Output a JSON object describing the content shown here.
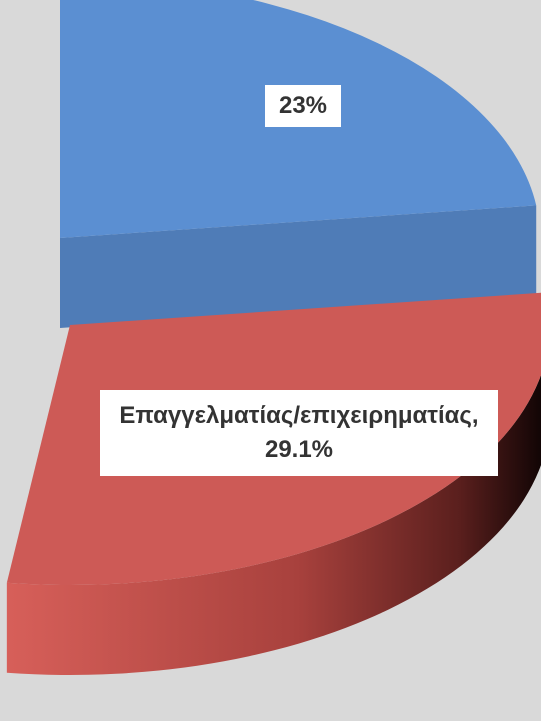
{
  "chart_data": {
    "type": "pie",
    "values": [
      23,
      29.1
    ],
    "value_labels": [
      "23%",
      "Επαγγελματίας/επιχειρηματίας, 29.1%"
    ],
    "colors": [
      "#5b8fd2",
      "#cd5a56"
    ]
  }
}
